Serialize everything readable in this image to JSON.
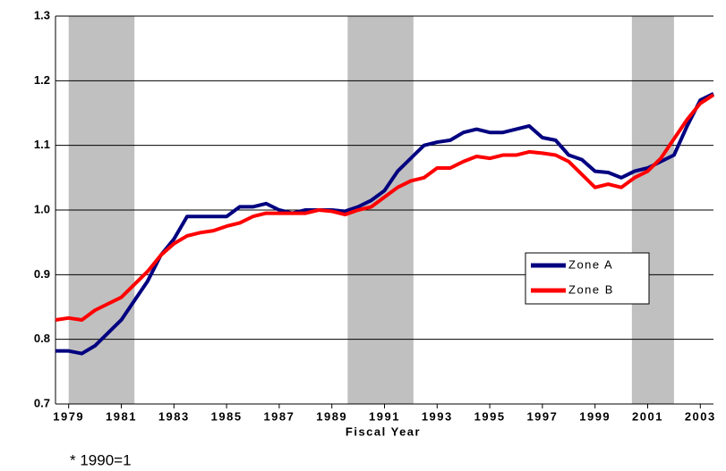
{
  "chart_data": {
    "type": "line",
    "x_label": "Fiscal Year",
    "note": "* 1990=1",
    "xlim": [
      1978.5,
      2003.5
    ],
    "xticks": [
      1979,
      1981,
      1983,
      1985,
      1987,
      1989,
      1991,
      1993,
      1995,
      1997,
      1999,
      2001,
      2003
    ],
    "ylim": [
      0.7,
      1.3
    ],
    "yticks": [
      0.7,
      0.8,
      0.9,
      {
        "value": 1,
        "label": "1.0"
      },
      1.1,
      1.2,
      1.3
    ],
    "grid": true,
    "legend": "center right",
    "shaded_regions": [
      [
        1979,
        1981.5
      ],
      [
        1989.6,
        1992.1
      ],
      [
        2000.4,
        2002
      ]
    ],
    "shade_color": "#c0c0c0",
    "x": [
      1978.5,
      1979,
      1979.5,
      1980,
      1980.5,
      1981,
      1981.5,
      1982,
      1982.5,
      1983,
      1983.5,
      1984,
      1984.5,
      1985,
      1985.5,
      1986,
      1986.5,
      1987,
      1987.5,
      1988,
      1988.5,
      1989,
      1989.5,
      1990,
      1990.5,
      1991,
      1991.5,
      1992,
      1992.5,
      1993,
      1993.5,
      1994,
      1994.5,
      1995,
      1995.5,
      1996,
      1996.5,
      1997,
      1997.5,
      1998,
      1998.5,
      1999,
      1999.5,
      2000,
      2000.5,
      2001,
      2001.5,
      2002,
      2002.5,
      2003,
      2003.5
    ],
    "series": [
      {
        "name": "Zone A",
        "color": "#000080",
        "values": [
          0.782,
          0.782,
          0.778,
          0.79,
          0.81,
          0.83,
          0.86,
          0.89,
          0.93,
          0.955,
          0.99,
          0.99,
          0.99,
          0.99,
          1.005,
          1.005,
          1.01,
          1.0,
          0.995,
          1.0,
          1.0,
          1.0,
          0.998,
          1.005,
          1.015,
          1.03,
          1.06,
          1.08,
          1.1,
          1.105,
          1.108,
          1.12,
          1.125,
          1.12,
          1.12,
          1.125,
          1.13,
          1.112,
          1.108,
          1.085,
          1.078,
          1.06,
          1.058,
          1.05,
          1.06,
          1.065,
          1.075,
          1.085,
          1.13,
          1.17,
          1.18
        ]
      },
      {
        "name": "Zone B",
        "color": "#ff0000",
        "values": [
          0.83,
          0.833,
          0.83,
          0.845,
          0.855,
          0.865,
          0.885,
          0.905,
          0.93,
          0.948,
          0.96,
          0.965,
          0.968,
          0.975,
          0.98,
          0.99,
          0.995,
          0.995,
          0.995,
          0.995,
          1.0,
          0.998,
          0.993,
          1.0,
          1.005,
          1.02,
          1.035,
          1.045,
          1.05,
          1.065,
          1.065,
          1.075,
          1.083,
          1.08,
          1.085,
          1.085,
          1.09,
          1.088,
          1.085,
          1.075,
          1.055,
          1.035,
          1.04,
          1.035,
          1.05,
          1.06,
          1.08,
          1.11,
          1.14,
          1.165,
          1.178
        ]
      }
    ]
  }
}
